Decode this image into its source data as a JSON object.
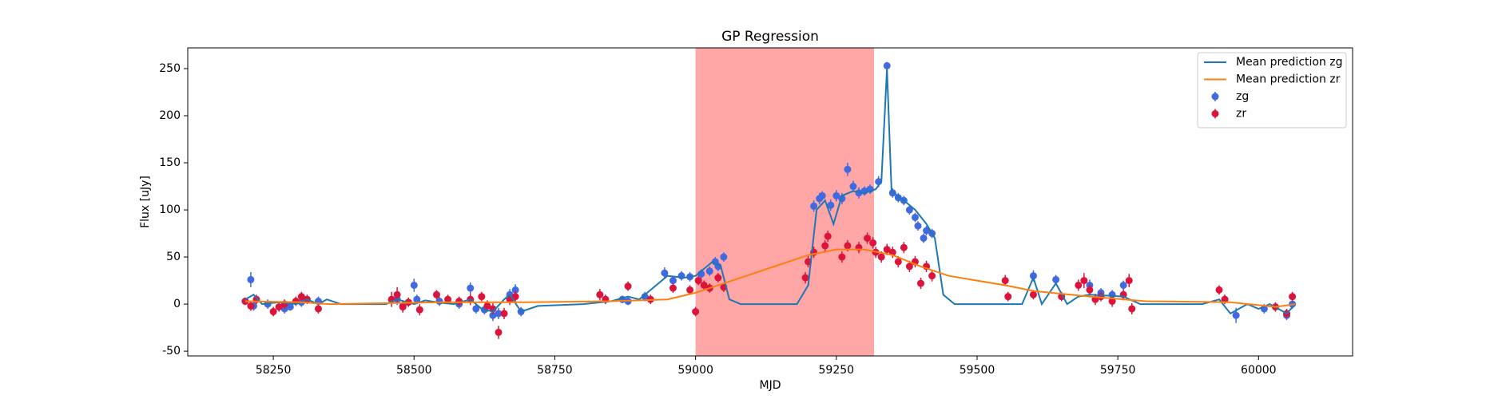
{
  "chart_data": {
    "type": "errorbar",
    "title": "GP Regression",
    "xlabel": "MJD",
    "ylabel": "Flux [uJy]",
    "xlim": [
      58098,
      60167
    ],
    "ylim": [
      -55,
      272
    ],
    "xticks": [
      58250,
      58500,
      58750,
      59000,
      59250,
      59500,
      59750,
      60000
    ],
    "yticks": [
      -50,
      0,
      50,
      100,
      150,
      200,
      250
    ],
    "legend": "upper right",
    "shade": {
      "xlim": [
        59000,
        59317
      ],
      "color": "#ff0000",
      "alpha": 0.35
    },
    "series": [
      {
        "name": "Mean prediction zg",
        "type": "line",
        "color": "#1f77b4",
        "x": [
          58200,
          58215,
          58230,
          58260,
          58290,
          58310,
          58330,
          58345,
          58370,
          58450,
          58470,
          58500,
          58520,
          58540,
          58570,
          58600,
          58620,
          58640,
          58660,
          58670,
          58690,
          58720,
          58800,
          58850,
          58880,
          58900,
          58930,
          58950,
          58980,
          59000,
          59030,
          59045,
          59060,
          59080,
          59180,
          59200,
          59215,
          59230,
          59245,
          59260,
          59280,
          59300,
          59320,
          59330,
          59340,
          59348,
          59370,
          59390,
          59410,
          59425,
          59440,
          59460,
          59580,
          59600,
          59615,
          59640,
          59660,
          59680,
          59700,
          59760,
          59790,
          59900,
          59930,
          59950,
          59980,
          60000,
          60020,
          60050,
          60065
        ],
        "values": [
          5,
          10,
          0,
          2,
          0,
          5,
          0,
          5,
          0,
          0,
          5,
          0,
          4,
          2,
          0,
          5,
          -5,
          -8,
          5,
          10,
          -8,
          -2,
          0,
          3,
          8,
          5,
          20,
          30,
          28,
          30,
          45,
          40,
          5,
          0,
          0,
          20,
          100,
          110,
          85,
          115,
          120,
          118,
          122,
          130,
          250,
          120,
          110,
          100,
          85,
          70,
          10,
          0,
          0,
          28,
          0,
          22,
          0,
          8,
          10,
          8,
          0,
          0,
          5,
          -10,
          0,
          -5,
          0,
          -10,
          0
        ]
      },
      {
        "name": "Mean prediction zr",
        "type": "line",
        "color": "#ff7f0e",
        "x": [
          58200,
          58300,
          58350,
          58450,
          58550,
          58700,
          58850,
          58950,
          59000,
          59050,
          59100,
          59150,
          59200,
          59250,
          59300,
          59350,
          59400,
          59450,
          59500,
          59550,
          59600,
          59700,
          59800,
          59950,
          60030,
          60065
        ],
        "values": [
          3,
          2,
          0,
          1,
          2,
          2,
          3,
          5,
          12,
          22,
          32,
          42,
          52,
          58,
          58,
          52,
          40,
          30,
          25,
          20,
          14,
          8,
          3,
          2,
          -3,
          0
        ]
      },
      {
        "name": "zg",
        "type": "errorbar",
        "color": "#4169e1",
        "x": [
          58210,
          58215,
          58240,
          58270,
          58280,
          58300,
          58330,
          58470,
          58480,
          58500,
          58505,
          58545,
          58580,
          58600,
          58610,
          58625,
          58640,
          58650,
          58670,
          58680,
          58690,
          58870,
          58880,
          58910,
          58945,
          58960,
          58975,
          58990,
          59010,
          59025,
          59035,
          59040,
          59050,
          59210,
          59220,
          59225,
          59240,
          59250,
          59260,
          59270,
          59280,
          59290,
          59300,
          59310,
          59325,
          59340,
          59350,
          59360,
          59370,
          59380,
          59390,
          59395,
          59405,
          59410,
          59420,
          59600,
          59640,
          59700,
          59720,
          59740,
          59760,
          59940,
          59960,
          60010,
          60050,
          60060
        ],
        "values": [
          26,
          -2,
          0,
          -5,
          -3,
          2,
          3,
          5,
          -2,
          20,
          5,
          3,
          0,
          17,
          -5,
          -6,
          -12,
          -10,
          10,
          15,
          -8,
          5,
          3,
          8,
          33,
          25,
          30,
          29,
          32,
          35,
          45,
          40,
          50,
          104,
          112,
          115,
          105,
          115,
          112,
          143,
          125,
          118,
          120,
          122,
          130,
          253,
          118,
          113,
          110,
          100,
          92,
          83,
          70,
          78,
          75,
          30,
          26,
          20,
          12,
          10,
          20,
          5,
          -12,
          -5,
          -12,
          0
        ],
        "errors": [
          8,
          5,
          5,
          5,
          4,
          5,
          5,
          6,
          5,
          7,
          5,
          5,
          5,
          6,
          5,
          5,
          6,
          6,
          6,
          6,
          5,
          4,
          4,
          5,
          6,
          5,
          5,
          5,
          5,
          5,
          5,
          5,
          5,
          6,
          6,
          5,
          6,
          6,
          6,
          7,
          6,
          6,
          5,
          5,
          6,
          4,
          5,
          5,
          5,
          5,
          5,
          5,
          5,
          5,
          5,
          6,
          5,
          6,
          5,
          5,
          5,
          5,
          8,
          5,
          5,
          5
        ]
      },
      {
        "name": "zr",
        "type": "errorbar",
        "color": "#dc143c",
        "x": [
          58200,
          58210,
          58220,
          58250,
          58260,
          58270,
          58290,
          58300,
          58310,
          58330,
          58460,
          58470,
          58480,
          58490,
          58510,
          58540,
          58560,
          58580,
          58600,
          58620,
          58630,
          58640,
          58650,
          58660,
          58670,
          58680,
          58830,
          58840,
          58880,
          58920,
          58960,
          58990,
          59000,
          59005,
          59015,
          59025,
          59040,
          59050,
          59195,
          59200,
          59210,
          59230,
          59235,
          59260,
          59270,
          59290,
          59305,
          59315,
          59320,
          59330,
          59340,
          59350,
          59360,
          59370,
          59380,
          59390,
          59400,
          59410,
          59420,
          59550,
          59555,
          59600,
          59650,
          59680,
          59690,
          59700,
          59710,
          59720,
          59740,
          59760,
          59770,
          59775,
          59930,
          59940,
          60030,
          60050,
          60060
        ],
        "values": [
          3,
          -2,
          5,
          -8,
          -3,
          0,
          3,
          8,
          5,
          -5,
          5,
          10,
          -3,
          2,
          -6,
          10,
          5,
          3,
          5,
          8,
          -2,
          -5,
          -30,
          -10,
          5,
          8,
          10,
          5,
          19,
          5,
          17,
          15,
          -8,
          25,
          20,
          17,
          28,
          18,
          28,
          45,
          55,
          62,
          72,
          50,
          62,
          60,
          70,
          65,
          55,
          50,
          58,
          55,
          45,
          60,
          40,
          45,
          22,
          40,
          30,
          25,
          8,
          10,
          8,
          20,
          25,
          15,
          5,
          8,
          3,
          10,
          25,
          -5,
          15,
          5,
          -3,
          -10,
          8
        ],
        "errors": [
          4,
          5,
          5,
          5,
          5,
          5,
          5,
          5,
          5,
          5,
          8,
          8,
          6,
          5,
          6,
          5,
          5,
          5,
          6,
          5,
          6,
          6,
          7,
          6,
          6,
          6,
          6,
          5,
          5,
          5,
          5,
          5,
          5,
          5,
          5,
          5,
          5,
          5,
          6,
          6,
          6,
          6,
          6,
          6,
          6,
          6,
          6,
          6,
          6,
          6,
          6,
          6,
          6,
          6,
          6,
          6,
          6,
          6,
          6,
          6,
          5,
          5,
          5,
          6,
          8,
          6,
          6,
          5,
          6,
          6,
          7,
          6,
          5,
          5,
          5,
          5,
          5
        ]
      }
    ]
  }
}
